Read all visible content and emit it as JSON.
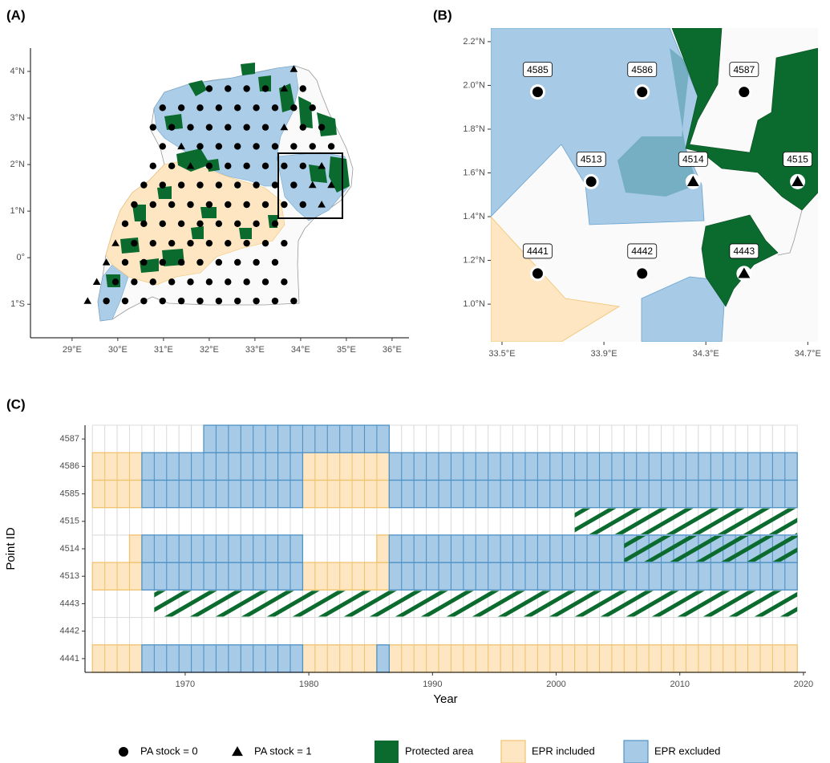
{
  "chart_data": [
    {
      "type": "scatter",
      "panel": "(A)",
      "xlim": [
        28.09,
        36.37
      ],
      "ylim": [
        -1.72,
        4.5
      ],
      "xticks": [
        {
          "value": 29,
          "label": "29°E"
        },
        {
          "value": 30,
          "label": "30°E"
        },
        {
          "value": 31,
          "label": "31°E"
        },
        {
          "value": 32,
          "label": "32°E"
        },
        {
          "value": 33,
          "label": "33°E"
        },
        {
          "value": 34,
          "label": "34°E"
        },
        {
          "value": 35,
          "label": "35°E"
        },
        {
          "value": 36,
          "label": "36°E"
        }
      ],
      "yticks": [
        {
          "value": -1,
          "label": "1°S"
        },
        {
          "value": 0,
          "label": "0°"
        },
        {
          "value": 1,
          "label": "1°N"
        },
        {
          "value": 2,
          "label": "2°N"
        },
        {
          "value": 3,
          "label": "3°N"
        },
        {
          "value": 4,
          "label": "4°N"
        }
      ],
      "series": [
        {
          "name": "PA stock = 0",
          "marker": "circle",
          "color": "#000000",
          "x": [
            32.0,
            32.41,
            32.82,
            33.23,
            34.05,
            30.98,
            31.39,
            31.8,
            32.21,
            32.62,
            33.03,
            33.44,
            33.85,
            34.26,
            30.77,
            31.18,
            31.59,
            32.0,
            32.41,
            32.82,
            33.23,
            34.05,
            34.46,
            30.98,
            31.8,
            32.21,
            32.62,
            33.03,
            33.44,
            33.85,
            34.26,
            34.67,
            30.77,
            31.18,
            32.0,
            32.41,
            32.82,
            33.23,
            33.64,
            34.05,
            30.57,
            30.98,
            31.39,
            31.8,
            32.21,
            32.62,
            33.03,
            33.44,
            33.85,
            30.36,
            30.77,
            31.18,
            31.59,
            32.0,
            32.41,
            32.82,
            33.23,
            33.64,
            34.05,
            30.16,
            30.57,
            30.98,
            31.39,
            31.8,
            32.21,
            32.62,
            33.03,
            33.44,
            30.36,
            30.77,
            31.18,
            31.59,
            32.0,
            32.41,
            32.82,
            33.23,
            33.64,
            30.16,
            30.57,
            30.98,
            31.39,
            31.8,
            32.21,
            32.62,
            33.03,
            33.44,
            29.95,
            30.36,
            30.77,
            31.18,
            31.59,
            32.0,
            32.41,
            32.82,
            33.23,
            33.64,
            29.75,
            30.16,
            30.57,
            30.98,
            31.39,
            31.8,
            32.21,
            32.62,
            33.03,
            33.44,
            33.85
          ],
          "y": [
            3.63,
            3.63,
            3.63,
            3.63,
            3.63,
            3.22,
            3.22,
            3.22,
            3.22,
            3.22,
            3.22,
            3.22,
            3.22,
            3.22,
            2.8,
            2.8,
            2.8,
            2.8,
            2.8,
            2.8,
            2.8,
            2.8,
            2.8,
            2.39,
            2.39,
            2.39,
            2.39,
            2.39,
            2.39,
            2.39,
            2.39,
            2.39,
            1.97,
            1.97,
            1.97,
            1.97,
            1.97,
            1.97,
            1.97,
            1.97,
            1.56,
            1.56,
            1.56,
            1.56,
            1.56,
            1.56,
            1.56,
            1.56,
            1.56,
            1.14,
            1.14,
            1.14,
            1.14,
            1.14,
            1.14,
            1.14,
            1.14,
            1.14,
            1.14,
            0.73,
            0.73,
            0.73,
            0.73,
            0.73,
            0.73,
            0.73,
            0.73,
            0.73,
            0.31,
            0.31,
            0.31,
            0.31,
            0.31,
            0.31,
            0.31,
            0.31,
            0.31,
            -0.1,
            -0.1,
            -0.1,
            -0.1,
            -0.1,
            -0.1,
            -0.1,
            -0.1,
            -0.1,
            -0.52,
            -0.52,
            -0.52,
            -0.52,
            -0.52,
            -0.52,
            -0.52,
            -0.52,
            -0.52,
            -0.52,
            -0.93,
            -0.93,
            -0.93,
            -0.93,
            -0.93,
            -0.93,
            -0.93,
            -0.93,
            -0.93,
            -0.93,
            -0.93
          ]
        },
        {
          "name": "PA stock = 1",
          "marker": "triangle",
          "color": "#000000",
          "x": [
            33.85,
            33.64,
            33.64,
            31.39,
            31.59,
            34.46,
            34.26,
            34.67,
            34.46,
            29.95,
            29.75,
            29.54,
            29.34
          ],
          "y": [
            4.05,
            3.63,
            2.8,
            2.39,
            1.97,
            1.97,
            1.56,
            1.56,
            1.14,
            0.31,
            -0.1,
            -0.52,
            -0.93
          ]
        }
      ]
    },
    {
      "type": "scatter",
      "panel": "(B)",
      "xlim": [
        33.456,
        34.74
      ],
      "ylim": [
        0.828,
        2.262
      ],
      "xticks": [
        {
          "value": 33.5,
          "label": "33.5°E"
        },
        {
          "value": 33.9,
          "label": "33.9°E"
        },
        {
          "value": 34.3,
          "label": "34.3°E"
        },
        {
          "value": 34.7,
          "label": "34.7°E"
        }
      ],
      "yticks": [
        {
          "value": 1.0,
          "label": "1.0°N"
        },
        {
          "value": 1.2,
          "label": "1.2°N"
        },
        {
          "value": 1.4,
          "label": "1.4°N"
        },
        {
          "value": 1.6,
          "label": "1.6°N"
        },
        {
          "value": 1.8,
          "label": "1.8°N"
        },
        {
          "value": 2.0,
          "label": "2.0°N"
        },
        {
          "value": 2.2,
          "label": "2.2°N"
        }
      ],
      "series": [
        {
          "marker": "circle",
          "color": "#000000",
          "labels": [
            "4585",
            "4586",
            "4587",
            "4513",
            "4441",
            "4442"
          ],
          "x": [
            33.64,
            34.05,
            34.45,
            33.85,
            33.64,
            34.05
          ],
          "y": [
            1.97,
            1.97,
            1.97,
            1.56,
            1.14,
            1.14
          ]
        },
        {
          "marker": "triangle",
          "color": "#000000",
          "labels": [
            "4514",
            "4515",
            "4443"
          ],
          "x": [
            34.25,
            34.66,
            34.45
          ],
          "y": [
            1.56,
            1.56,
            1.14
          ]
        }
      ]
    },
    {
      "type": "tile",
      "panel": "(C)",
      "x_label": "Year",
      "y_label": "Point ID",
      "categories": [
        "4441",
        "4442",
        "4443",
        "4513",
        "4514",
        "4515",
        "4585",
        "4586",
        "4587"
      ],
      "xlim": [
        1961.9,
        2020.2
      ],
      "xticks": [
        1970,
        1980,
        1990,
        2000,
        2010,
        2020
      ],
      "series": [
        {
          "name": "Protected area",
          "color": "#0b6b2e",
          "pattern": "hatch",
          "segments": [
            {
              "category": "4443",
              "start": 1968,
              "end": 2019
            },
            {
              "category": "4514",
              "start": 2006,
              "end": 2019
            },
            {
              "category": "4515",
              "start": 2002,
              "end": 2019
            }
          ]
        },
        {
          "name": "EPR included",
          "color": "#fde6c1",
          "edge": "#f1c36f",
          "segments": [
            {
              "category": "4441",
              "start": 1963,
              "end": 1966
            },
            {
              "category": "4441",
              "start": 1980,
              "end": 1985
            },
            {
              "category": "4441",
              "start": 1987,
              "end": 2019
            },
            {
              "category": "4513",
              "start": 1963,
              "end": 1966
            },
            {
              "category": "4513",
              "start": 1980,
              "end": 1986
            },
            {
              "category": "4514",
              "start": 1966,
              "end": 1966
            },
            {
              "category": "4514",
              "start": 1986,
              "end": 1986
            },
            {
              "category": "4585",
              "start": 1963,
              "end": 1966
            },
            {
              "category": "4585",
              "start": 1980,
              "end": 1986
            },
            {
              "category": "4586",
              "start": 1963,
              "end": 1966
            },
            {
              "category": "4586",
              "start": 1980,
              "end": 1986
            }
          ]
        },
        {
          "name": "EPR excluded",
          "color": "#a7cbe7",
          "edge": "#4f92c6",
          "segments": [
            {
              "category": "4441",
              "start": 1967,
              "end": 1979
            },
            {
              "category": "4441",
              "start": 1986,
              "end": 1986
            },
            {
              "category": "4513",
              "start": 1967,
              "end": 1979
            },
            {
              "category": "4513",
              "start": 1987,
              "end": 2019
            },
            {
              "category": "4514",
              "start": 1967,
              "end": 1979
            },
            {
              "category": "4514",
              "start": 1987,
              "end": 2019
            },
            {
              "category": "4585",
              "start": 1967,
              "end": 1979
            },
            {
              "category": "4585",
              "start": 1987,
              "end": 2019
            },
            {
              "category": "4586",
              "start": 1967,
              "end": 1979
            },
            {
              "category": "4586",
              "start": 1987,
              "end": 2019
            },
            {
              "category": "4587",
              "start": 1972,
              "end": 1986
            }
          ]
        }
      ]
    }
  ]
}
